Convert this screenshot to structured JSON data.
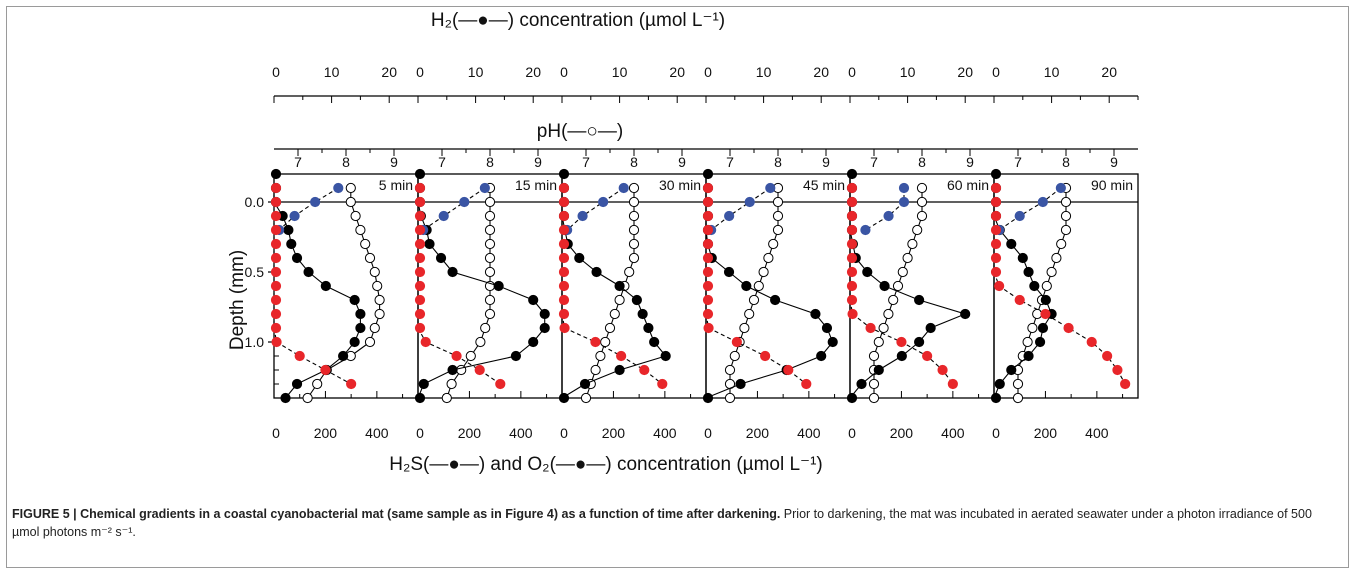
{
  "figure": {
    "top_axis_title": "H₂(—●—) concentration (µmol L⁻¹)",
    "ph_axis_title": "pH(—○—)",
    "y_axis_title": "Depth (mm)",
    "bottom_axis_title": "H₂S(—●—) and O₂(—●—) concentration (µmol L⁻¹)"
  },
  "caption": {
    "label": "FIGURE 5 | Chemical gradients in a coastal cyanobacterial mat (same sample as in Figure 4) as a function of time after darkening.",
    "text": " Prior to darkening, the mat was incubated in aerated seawater under a photon irradiance of 500 µmol photons m⁻² s⁻¹."
  },
  "colors": {
    "h2": "#000000",
    "ph": "#000000",
    "h2s": "#e8262a",
    "o2": "#3a55a4"
  },
  "chart_data": {
    "type": "scatter",
    "panels": [
      "5 min",
      "15 min",
      "30 min",
      "45 min",
      "60 min",
      "90 min"
    ],
    "ylabel": "Depth (mm)",
    "ylim": [
      1.4,
      -0.2
    ],
    "yticks": [
      0.0,
      0.5,
      1.0
    ],
    "depths": [
      -0.2,
      -0.1,
      0.0,
      0.1,
      0.2,
      0.3,
      0.4,
      0.5,
      0.6,
      0.7,
      0.8,
      0.9,
      1.0,
      1.1,
      1.2,
      1.3,
      1.4
    ],
    "h2_axis": {
      "label": "H₂ concentration (µmol L⁻¹)",
      "xlim": [
        0,
        25
      ],
      "ticks": [
        0,
        10,
        20
      ]
    },
    "ph_axis": {
      "label": "pH",
      "xlim": [
        6.5,
        9.5
      ],
      "ticks": [
        7,
        8,
        9
      ]
    },
    "conc_axis": {
      "label": "H₂S and O₂ concentration (µmol L⁻¹)",
      "xlim": [
        0,
        560
      ],
      "ticks": [
        0,
        200,
        400
      ]
    },
    "series": {
      "h2": [
        [
          0,
          0,
          0,
          1.5,
          2.5,
          3,
          4,
          6,
          9,
          14,
          15,
          15,
          14,
          12,
          9,
          4,
          2
        ],
        [
          0,
          0,
          0,
          0.5,
          1.5,
          2,
          4,
          6,
          14,
          20,
          22,
          22,
          20,
          17,
          6,
          1,
          0
        ],
        [
          0,
          0,
          0,
          0,
          0.5,
          1,
          3,
          6,
          10,
          13,
          14,
          15,
          16,
          18,
          10,
          4,
          0
        ],
        [
          0,
          0,
          0,
          0,
          0,
          0.3,
          1,
          4,
          7,
          12,
          19,
          21,
          22,
          20,
          14,
          6,
          0
        ],
        [
          0,
          0,
          0,
          0,
          0,
          0.5,
          1,
          3,
          6,
          12,
          20,
          14,
          12,
          9,
          5,
          2,
          0
        ],
        [
          0,
          0,
          0,
          0,
          1,
          3,
          5,
          6,
          7,
          9,
          10,
          8.5,
          8,
          6,
          3,
          1,
          0
        ]
      ],
      "ph": [
        [
          null,
          8.1,
          8.1,
          8.2,
          8.3,
          8.4,
          8.5,
          8.6,
          8.65,
          8.7,
          8.7,
          8.6,
          8.5,
          8.1,
          7.6,
          7.4,
          7.2
        ],
        [
          null,
          8.0,
          8.0,
          8.0,
          8.0,
          8.0,
          8.0,
          8.0,
          8.0,
          8.0,
          8.0,
          7.9,
          7.8,
          7.6,
          7.4,
          7.2,
          7.1
        ],
        [
          null,
          8.0,
          8.0,
          8.0,
          8.0,
          8.0,
          8.0,
          7.9,
          7.8,
          7.7,
          7.6,
          7.5,
          7.4,
          7.3,
          7.2,
          7.1,
          7.0
        ],
        [
          null,
          8.0,
          8.0,
          8.0,
          8.0,
          7.9,
          7.8,
          7.7,
          7.6,
          7.5,
          7.4,
          7.3,
          7.2,
          7.1,
          7.0,
          7.0,
          7.0
        ],
        [
          null,
          8.0,
          8.0,
          8.0,
          7.9,
          7.8,
          7.7,
          7.6,
          7.5,
          7.4,
          7.3,
          7.2,
          7.1,
          7.0,
          7.0,
          7.0,
          7.0
        ],
        [
          null,
          8.0,
          8.0,
          8.0,
          8.0,
          7.9,
          7.8,
          7.7,
          7.6,
          7.5,
          7.4,
          7.3,
          7.2,
          7.1,
          7.0,
          7.0,
          7.0
        ]
      ],
      "o2": [
        [
          null,
          250,
          160,
          80,
          20,
          null,
          null,
          null,
          null,
          null,
          null,
          null,
          null,
          null,
          null,
          null,
          null
        ],
        [
          null,
          260,
          180,
          100,
          20,
          null,
          null,
          null,
          null,
          null,
          null,
          null,
          null,
          null,
          null,
          null,
          null
        ],
        [
          null,
          240,
          160,
          80,
          20,
          null,
          null,
          null,
          null,
          null,
          null,
          null,
          null,
          null,
          null,
          null,
          null
        ],
        [
          null,
          250,
          170,
          90,
          20,
          null,
          null,
          null,
          null,
          null,
          null,
          null,
          null,
          null,
          null,
          null,
          null
        ],
        [
          null,
          210,
          210,
          150,
          60,
          null,
          null,
          null,
          null,
          null,
          null,
          null,
          null,
          null,
          null,
          null,
          null
        ],
        [
          null,
          260,
          190,
          100,
          20,
          null,
          null,
          null,
          null,
          null,
          null,
          null,
          null,
          null,
          null,
          null,
          null
        ]
      ],
      "h2s": [
        [
          null,
          0,
          0,
          0,
          0,
          0,
          0,
          0,
          0,
          0,
          0,
          0,
          10,
          100,
          200,
          300,
          null
        ],
        [
          null,
          0,
          0,
          0,
          0,
          0,
          0,
          0,
          0,
          0,
          0,
          0,
          30,
          150,
          240,
          320,
          null
        ],
        [
          null,
          0,
          0,
          0,
          0,
          0,
          0,
          0,
          0,
          0,
          0,
          10,
          130,
          230,
          320,
          390,
          null
        ],
        [
          null,
          0,
          0,
          0,
          0,
          0,
          0,
          0,
          0,
          0,
          0,
          10,
          120,
          230,
          320,
          390,
          null
        ],
        [
          null,
          0,
          0,
          0,
          0,
          0,
          0,
          0,
          0,
          0,
          10,
          80,
          200,
          300,
          360,
          400,
          null
        ],
        [
          null,
          0,
          0,
          0,
          0,
          0,
          0,
          0,
          20,
          100,
          200,
          290,
          380,
          440,
          480,
          510,
          null
        ]
      ]
    }
  }
}
